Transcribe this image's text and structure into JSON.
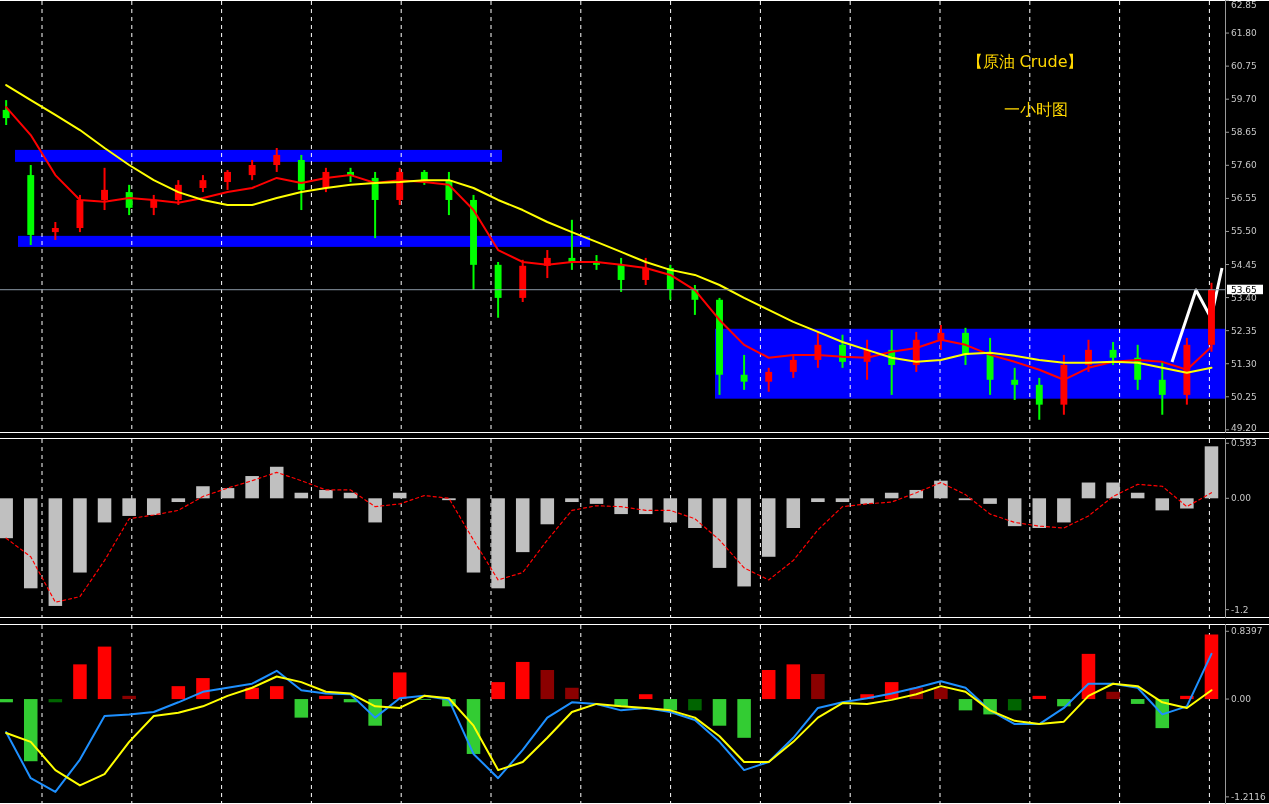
{
  "chart_data": [
    {
      "type": "candlestick",
      "title": "【原油 Crude】",
      "subtitle": "一小时图",
      "categories": [
        null,
        null,
        null,
        null,
        null,
        null,
        null,
        null,
        null,
        null,
        null,
        null,
        null,
        null,
        null,
        null,
        null,
        null,
        null,
        null,
        null,
        null,
        null,
        null,
        null,
        null,
        null,
        null,
        null,
        null,
        null,
        null,
        null,
        null,
        null,
        null,
        null,
        null,
        null,
        null,
        null,
        null,
        null,
        null,
        null,
        null,
        null,
        null,
        null,
        null
      ],
      "ohlc": [
        [
          59.36,
          59.67,
          58.88,
          59.1
        ],
        [
          57.29,
          57.61,
          55.07,
          55.39
        ],
        [
          55.48,
          55.8,
          55.23,
          55.61
        ],
        [
          55.61,
          56.66,
          55.48,
          56.5
        ],
        [
          56.5,
          57.52,
          56.18,
          56.82
        ],
        [
          56.75,
          56.98,
          56.02,
          56.25
        ],
        [
          56.25,
          56.66,
          56.02,
          56.5
        ],
        [
          56.5,
          57.13,
          56.34,
          56.98
        ],
        [
          56.88,
          57.29,
          56.75,
          57.13
        ],
        [
          57.07,
          57.45,
          56.82,
          57.39
        ],
        [
          57.29,
          57.77,
          57.13,
          57.61
        ],
        [
          57.61,
          58.15,
          57.39,
          57.93
        ],
        [
          57.77,
          57.93,
          56.18,
          56.82
        ],
        [
          56.88,
          57.52,
          56.75,
          57.39
        ],
        [
          57.39,
          57.52,
          57.07,
          57.26
        ],
        [
          57.2,
          57.39,
          55.29,
          56.5
        ],
        [
          56.5,
          57.52,
          56.34,
          57.39
        ],
        [
          57.39,
          57.45,
          56.98,
          57.13
        ],
        [
          57.13,
          57.39,
          56.02,
          56.5
        ],
        [
          56.5,
          56.66,
          53.64,
          54.44
        ],
        [
          54.44,
          54.53,
          52.76,
          53.39
        ],
        [
          53.39,
          54.6,
          53.26,
          54.41
        ],
        [
          54.41,
          54.91,
          54.02,
          54.66
        ],
        [
          54.66,
          55.87,
          54.28,
          54.53
        ],
        [
          54.53,
          54.75,
          54.28,
          54.44
        ],
        [
          54.44,
          54.66,
          53.58,
          53.96
        ],
        [
          53.96,
          54.66,
          53.8,
          54.34
        ],
        [
          54.34,
          54.44,
          53.33,
          53.64
        ],
        [
          53.64,
          53.8,
          52.85,
          53.33
        ],
        [
          53.33,
          53.39,
          50.31,
          50.95
        ],
        [
          50.95,
          51.58,
          50.47,
          50.73
        ],
        [
          50.73,
          51.17,
          50.41,
          51.04
        ],
        [
          51.04,
          51.58,
          50.85,
          51.42
        ],
        [
          51.42,
          52.31,
          51.17,
          51.9
        ],
        [
          51.9,
          52.22,
          51.17,
          51.36
        ],
        [
          51.36,
          52.06,
          50.79,
          51.74
        ],
        [
          51.74,
          52.37,
          50.31,
          51.26
        ],
        [
          51.26,
          52.31,
          51.04,
          52.06
        ],
        [
          52.06,
          52.53,
          51.74,
          52.28
        ],
        [
          52.28,
          52.44,
          51.26,
          51.58
        ],
        [
          51.58,
          52.12,
          50.31,
          50.79
        ],
        [
          50.79,
          51.17,
          50.15,
          50.63
        ],
        [
          50.63,
          50.85,
          49.52,
          50.0
        ],
        [
          50.0,
          51.58,
          49.68,
          51.26
        ],
        [
          51.26,
          52.06,
          51.04,
          51.74
        ],
        [
          51.74,
          51.99,
          51.26,
          51.49
        ],
        [
          51.49,
          51.9,
          50.47,
          50.79
        ],
        [
          50.79,
          51.36,
          49.68,
          50.31
        ],
        [
          50.31,
          52.12,
          50.0,
          51.9
        ],
        [
          51.9,
          53.87,
          51.68,
          53.65
        ]
      ],
      "colors": [
        "#00ff00",
        "#00ff00",
        "#ff0000",
        "#ff0000",
        "#ff0000",
        "#00ff00",
        "#ff0000",
        "#ff0000",
        "#ff0000",
        "#ff0000",
        "#ff0000",
        "#ff0000",
        "#00ff00",
        "#ff0000",
        "#00ff00",
        "#00ff00",
        "#ff0000",
        "#00ff00",
        "#00ff00",
        "#00ff00",
        "#00ff00",
        "#ff0000",
        "#ff0000",
        "#00ff00",
        "#00ff00",
        "#00ff00",
        "#ff0000",
        "#00ff00",
        "#00ff00",
        "#00ff00",
        "#00ff00",
        "#ff0000",
        "#ff0000",
        "#ff0000",
        "#00ff00",
        "#ff0000",
        "#00ff00",
        "#ff0000",
        "#ff0000",
        "#00ff00",
        "#00ff00",
        "#00ff00",
        "#00ff00",
        "#ff0000",
        "#ff0000",
        "#00ff00",
        "#00ff00",
        "#00ff00",
        "#ff0000",
        "#ff0000"
      ],
      "series": [
        {
          "type": "line",
          "color": "#ff0000",
          "values": [
            59.45,
            58.56,
            57.29,
            56.5,
            56.44,
            56.56,
            56.5,
            56.41,
            56.56,
            56.75,
            56.88,
            57.2,
            57.04,
            57.2,
            57.29,
            57.04,
            57.13,
            57.07,
            56.98,
            56.18,
            54.91,
            54.53,
            54.44,
            54.53,
            54.53,
            54.44,
            54.34,
            54.12,
            53.64,
            52.69,
            51.9,
            51.49,
            51.58,
            51.58,
            51.52,
            51.49,
            51.68,
            51.8,
            52.06,
            51.9,
            51.58,
            51.36,
            51.11,
            50.79,
            51.17,
            51.36,
            51.42,
            51.36,
            51.11,
            51.84
          ]
        },
        {
          "type": "line",
          "color": "#ffff00",
          "values": [
            60.15,
            59.67,
            59.2,
            58.72,
            58.15,
            57.61,
            57.13,
            56.75,
            56.5,
            56.34,
            56.34,
            56.56,
            56.75,
            56.88,
            56.98,
            57.04,
            57.07,
            57.13,
            57.13,
            56.88,
            56.5,
            56.18,
            55.8,
            55.48,
            55.17,
            54.85,
            54.53,
            54.28,
            54.12,
            53.8,
            53.39,
            53.01,
            52.63,
            52.31,
            51.99,
            51.74,
            51.49,
            51.36,
            51.42,
            51.61,
            51.65,
            51.55,
            51.42,
            51.33,
            51.33,
            51.36,
            51.33,
            51.17,
            51.01,
            51.17
          ]
        }
      ],
      "bands": [
        {
          "axis": "y",
          "from": 57.71,
          "to": 58.09,
          "color": "#0000ff"
        },
        {
          "axis": "y",
          "from": 55.01,
          "to": 55.36,
          "color": "#0000ff"
        },
        {
          "axis": "y",
          "from": 50.19,
          "to": 52.41,
          "color": "#0000ff"
        }
      ],
      "ylim": [
        49.1,
        62.85
      ],
      "yticks": [
        {
          "value": 49.2,
          "label": "49.20"
        },
        50.25,
        {
          "value": 51.3,
          "label": "51.30"
        },
        52.35,
        {
          "value": 53.4,
          "label": "53.40"
        },
        54.45,
        {
          "value": 55.5,
          "label": "55.50"
        },
        56.55,
        {
          "value": 57.6,
          "label": "57.60"
        },
        58.65,
        {
          "value": 59.7,
          "label": "59.70"
        },
        60.75,
        {
          "value": 61.8,
          "label": "61.80"
        },
        62.85
      ],
      "ref_lines": [
        {
          "axis": "y",
          "value": 53.65,
          "label": "53.65",
          "color": "#8c9aa8"
        }
      ],
      "grid": "x",
      "tick_labels": "y"
    },
    {
      "type": "bar",
      "categories": [
        null,
        null,
        null,
        null,
        null,
        null,
        null,
        null,
        null,
        null,
        null,
        null,
        null,
        null,
        null,
        null,
        null,
        null,
        null,
        null,
        null,
        null,
        null,
        null,
        null,
        null,
        null,
        null,
        null,
        null,
        null,
        null,
        null,
        null,
        null,
        null,
        null,
        null,
        null,
        null,
        null,
        null,
        null,
        null,
        null,
        null,
        null,
        null,
        null,
        null
      ],
      "series": [
        {
          "type": "bar",
          "color": "#c0c0c0",
          "values": [
            -0.43,
            -0.97,
            -1.16,
            -0.8,
            -0.26,
            -0.19,
            -0.18,
            -0.04,
            0.13,
            0.11,
            0.24,
            0.34,
            0.06,
            0.09,
            0.06,
            -0.26,
            0.06,
            0,
            -0.02,
            -0.8,
            -0.97,
            -0.58,
            -0.28,
            -0.04,
            -0.06,
            -0.17,
            -0.17,
            -0.26,
            -0.32,
            -0.75,
            -0.95,
            -0.63,
            -0.32,
            -0.04,
            -0.04,
            -0.06,
            0.06,
            0.09,
            0.19,
            -0.02,
            -0.06,
            -0.3,
            -0.32,
            -0.26,
            0.17,
            0.17,
            0.06,
            -0.13,
            -0.11,
            0.56
          ]
        },
        {
          "type": "line",
          "color": "#ff0000",
          "line_style": "dashed",
          "values": [
            -0.43,
            -0.63,
            -1.12,
            -1.06,
            -0.67,
            -0.22,
            -0.18,
            -0.13,
            0.02,
            0.11,
            0.19,
            0.28,
            0.19,
            0.09,
            0.09,
            -0.09,
            -0.06,
            0.03,
            0,
            -0.45,
            -0.88,
            -0.8,
            -0.45,
            -0.13,
            -0.08,
            -0.09,
            -0.13,
            -0.13,
            -0.22,
            -0.45,
            -0.75,
            -0.88,
            -0.67,
            -0.34,
            -0.09,
            -0.06,
            -0.04,
            0.06,
            0.17,
            0.04,
            -0.17,
            -0.26,
            -0.3,
            -0.32,
            -0.19,
            0.02,
            0.15,
            0.13,
            -0.09,
            0.06
          ]
        }
      ],
      "ylim": [
        -1.29,
        0.65
      ],
      "yticks": [
        0.593,
        {
          "value": 0,
          "label": "0.00"
        },
        -1.2
      ],
      "grid": "x",
      "tick_labels": "y"
    },
    {
      "type": "bar",
      "categories": [
        null,
        null,
        null,
        null,
        null,
        null,
        null,
        null,
        null,
        null,
        null,
        null,
        null,
        null,
        null,
        null,
        null,
        null,
        null,
        null,
        null,
        null,
        null,
        null,
        null,
        null,
        null,
        null,
        null,
        null,
        null,
        null,
        null,
        null,
        null,
        null,
        null,
        null,
        null,
        null,
        null,
        null,
        null,
        null,
        null,
        null,
        null,
        null,
        null,
        null
      ],
      "series": [
        {
          "type": "bar",
          "values": [
            -0.04,
            -0.77,
            -0.04,
            0.43,
            0.65,
            0.04,
            0,
            0.16,
            0.26,
            0,
            0.14,
            0.16,
            -0.23,
            0.04,
            -0.04,
            -0.33,
            0.33,
            -0.01,
            -0.09,
            -0.68,
            0.21,
            0.46,
            0.36,
            0.14,
            0,
            -0.09,
            0.06,
            -0.14,
            -0.14,
            -0.33,
            -0.48,
            0.36,
            0.43,
            0.31,
            0,
            0.06,
            0.21,
            0.14,
            0.14,
            -0.14,
            -0.19,
            -0.14,
            0.04,
            -0.09,
            0.56,
            0.09,
            -0.06,
            -0.36,
            0.04,
            0.8
          ],
          "colors": [
            "#33cc33",
            "#33cc33",
            "#006400",
            "#ff0000",
            "#ff0000",
            "#8b0000",
            "#006400",
            "#ff0000",
            "#ff0000",
            "#006400",
            "#ff0000",
            "#ff0000",
            "#33cc33",
            "#ff0000",
            "#33cc33",
            "#33cc33",
            "#ff0000",
            "#33cc33",
            "#33cc33",
            "#33cc33",
            "#ff0000",
            "#ff0000",
            "#8b0000",
            "#8b0000",
            "#006400",
            "#33cc33",
            "#ff0000",
            "#33cc33",
            "#006400",
            "#33cc33",
            "#33cc33",
            "#ff0000",
            "#ff0000",
            "#8b0000",
            "#006400",
            "#ff0000",
            "#ff0000",
            "#8b0000",
            "#8b0000",
            "#33cc33",
            "#33cc33",
            "#006400",
            "#ff0000",
            "#33cc33",
            "#ff0000",
            "#8b0000",
            "#33cc33",
            "#33cc33",
            "#ff0000",
            "#ff0000"
          ]
        },
        {
          "type": "line",
          "color": "#1e90ff",
          "values": [
            -0.41,
            -0.98,
            -1.15,
            -0.75,
            -0.21,
            -0.19,
            -0.16,
            -0.04,
            0.09,
            0.14,
            0.19,
            0.35,
            0.11,
            0.07,
            0.06,
            -0.23,
            0.01,
            0.04,
            -0.01,
            -0.68,
            -0.98,
            -0.63,
            -0.23,
            -0.04,
            -0.06,
            -0.14,
            -0.11,
            -0.16,
            -0.26,
            -0.53,
            -0.88,
            -0.78,
            -0.48,
            -0.11,
            -0.04,
            0.01,
            0.07,
            0.14,
            0.22,
            0.14,
            -0.14,
            -0.31,
            -0.31,
            -0.11,
            0.19,
            0.19,
            0.14,
            -0.19,
            -0.09,
            0.56
          ]
        },
        {
          "type": "line",
          "color": "#ffff00",
          "values": [
            -0.42,
            -0.53,
            -0.88,
            -1.07,
            -0.93,
            -0.53,
            -0.21,
            -0.17,
            -0.09,
            0.04,
            0.14,
            0.28,
            0.21,
            0.09,
            0.07,
            -0.09,
            -0.11,
            0.04,
            0.01,
            -0.33,
            -0.88,
            -0.78,
            -0.48,
            -0.16,
            -0.06,
            -0.09,
            -0.11,
            -0.14,
            -0.23,
            -0.46,
            -0.78,
            -0.78,
            -0.53,
            -0.23,
            -0.05,
            -0.06,
            -0.01,
            0.06,
            0.16,
            0.09,
            -0.14,
            -0.27,
            -0.31,
            -0.28,
            0.04,
            0.19,
            0.16,
            -0.04,
            -0.11,
            0.11
          ]
        }
      ],
      "ylim": [
        -1.3,
        0.93
      ],
      "yticks": [
        0.8397,
        {
          "value": 0,
          "label": "0.00"
        },
        -1.2116
      ],
      "grid": "x",
      "tick_labels": "y"
    }
  ]
}
